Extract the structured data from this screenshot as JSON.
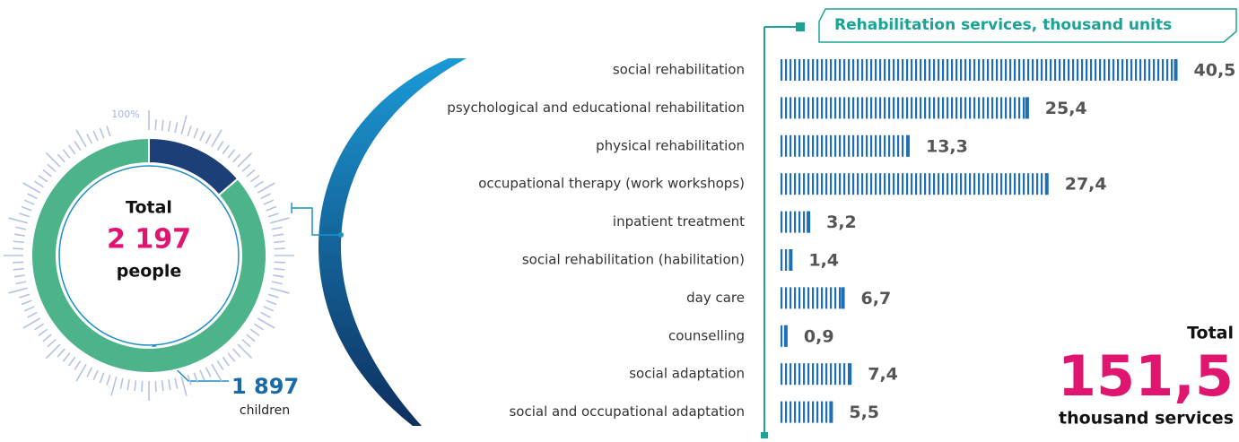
{
  "chart_data": [
    {
      "type": "pie",
      "center_title": "Total",
      "total": 2197,
      "total_value_label": "2 197",
      "total_unit": "people",
      "scale_label": "100%",
      "categories": [
        "children",
        null
      ],
      "values": [
        1897,
        300
      ],
      "value_labels": [
        "1 897",
        null
      ],
      "colors": [
        "#4cb38a",
        "#1d3f78"
      ]
    },
    {
      "type": "bar",
      "title": "Rehabilitation services, thousand units",
      "categories": [
        "social rehabilitation",
        "psychological and educational rehabilitation",
        "physical rehabilitation",
        "occupational therapy (work workshops)",
        "inpatient treatment",
        "social rehabilitation (habilitation)",
        "day care",
        "counselling",
        "social adaptation",
        "social and occupational adaptation"
      ],
      "values": [
        40.5,
        25.4,
        13.3,
        27.4,
        3.2,
        1.4,
        6.7,
        0.9,
        7.4,
        5.5
      ],
      "value_labels": [
        "40,5",
        "25,4",
        "13,3",
        "27,4",
        "3,2",
        "1,4",
        "6,7",
        "0,9",
        "7,4",
        "5,5"
      ],
      "color": "#1f6fb2",
      "xlim": [
        0,
        41
      ],
      "total_title": "Total",
      "total": 151.5,
      "total_value_label": "151,5",
      "total_unit": "thousand services"
    }
  ]
}
